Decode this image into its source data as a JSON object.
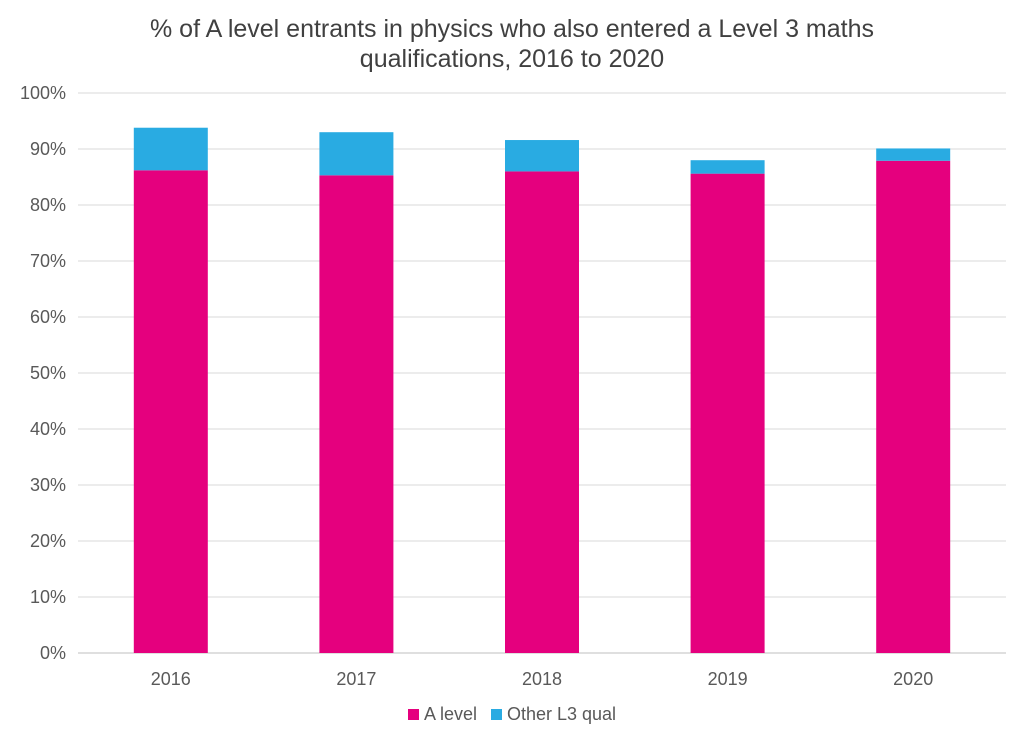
{
  "chart_data": {
    "type": "bar",
    "stacked": true,
    "title": "% of A level entrants in physics who also entered a Level 3 maths qualifications, 2016 to 2020",
    "title_lines": [
      "% of A level entrants in physics who also entered a Level 3 maths",
      "qualifications, 2016 to 2020"
    ],
    "categories": [
      "2016",
      "2017",
      "2018",
      "2019",
      "2020"
    ],
    "series": [
      {
        "name": "A level",
        "color": "#e5007e",
        "values": [
          86.2,
          85.3,
          86.0,
          85.6,
          87.9
        ]
      },
      {
        "name": "Other L3 qual",
        "color": "#29abe2",
        "values": [
          7.6,
          7.7,
          5.6,
          2.4,
          2.2
        ]
      }
    ],
    "xlabel": "",
    "ylabel": "",
    "ylim": [
      0,
      100
    ],
    "yticks": [
      "0%",
      "10%",
      "20%",
      "30%",
      "40%",
      "50%",
      "60%",
      "70%",
      "80%",
      "90%",
      "100%"
    ],
    "grid": true,
    "legend": "bottom"
  }
}
